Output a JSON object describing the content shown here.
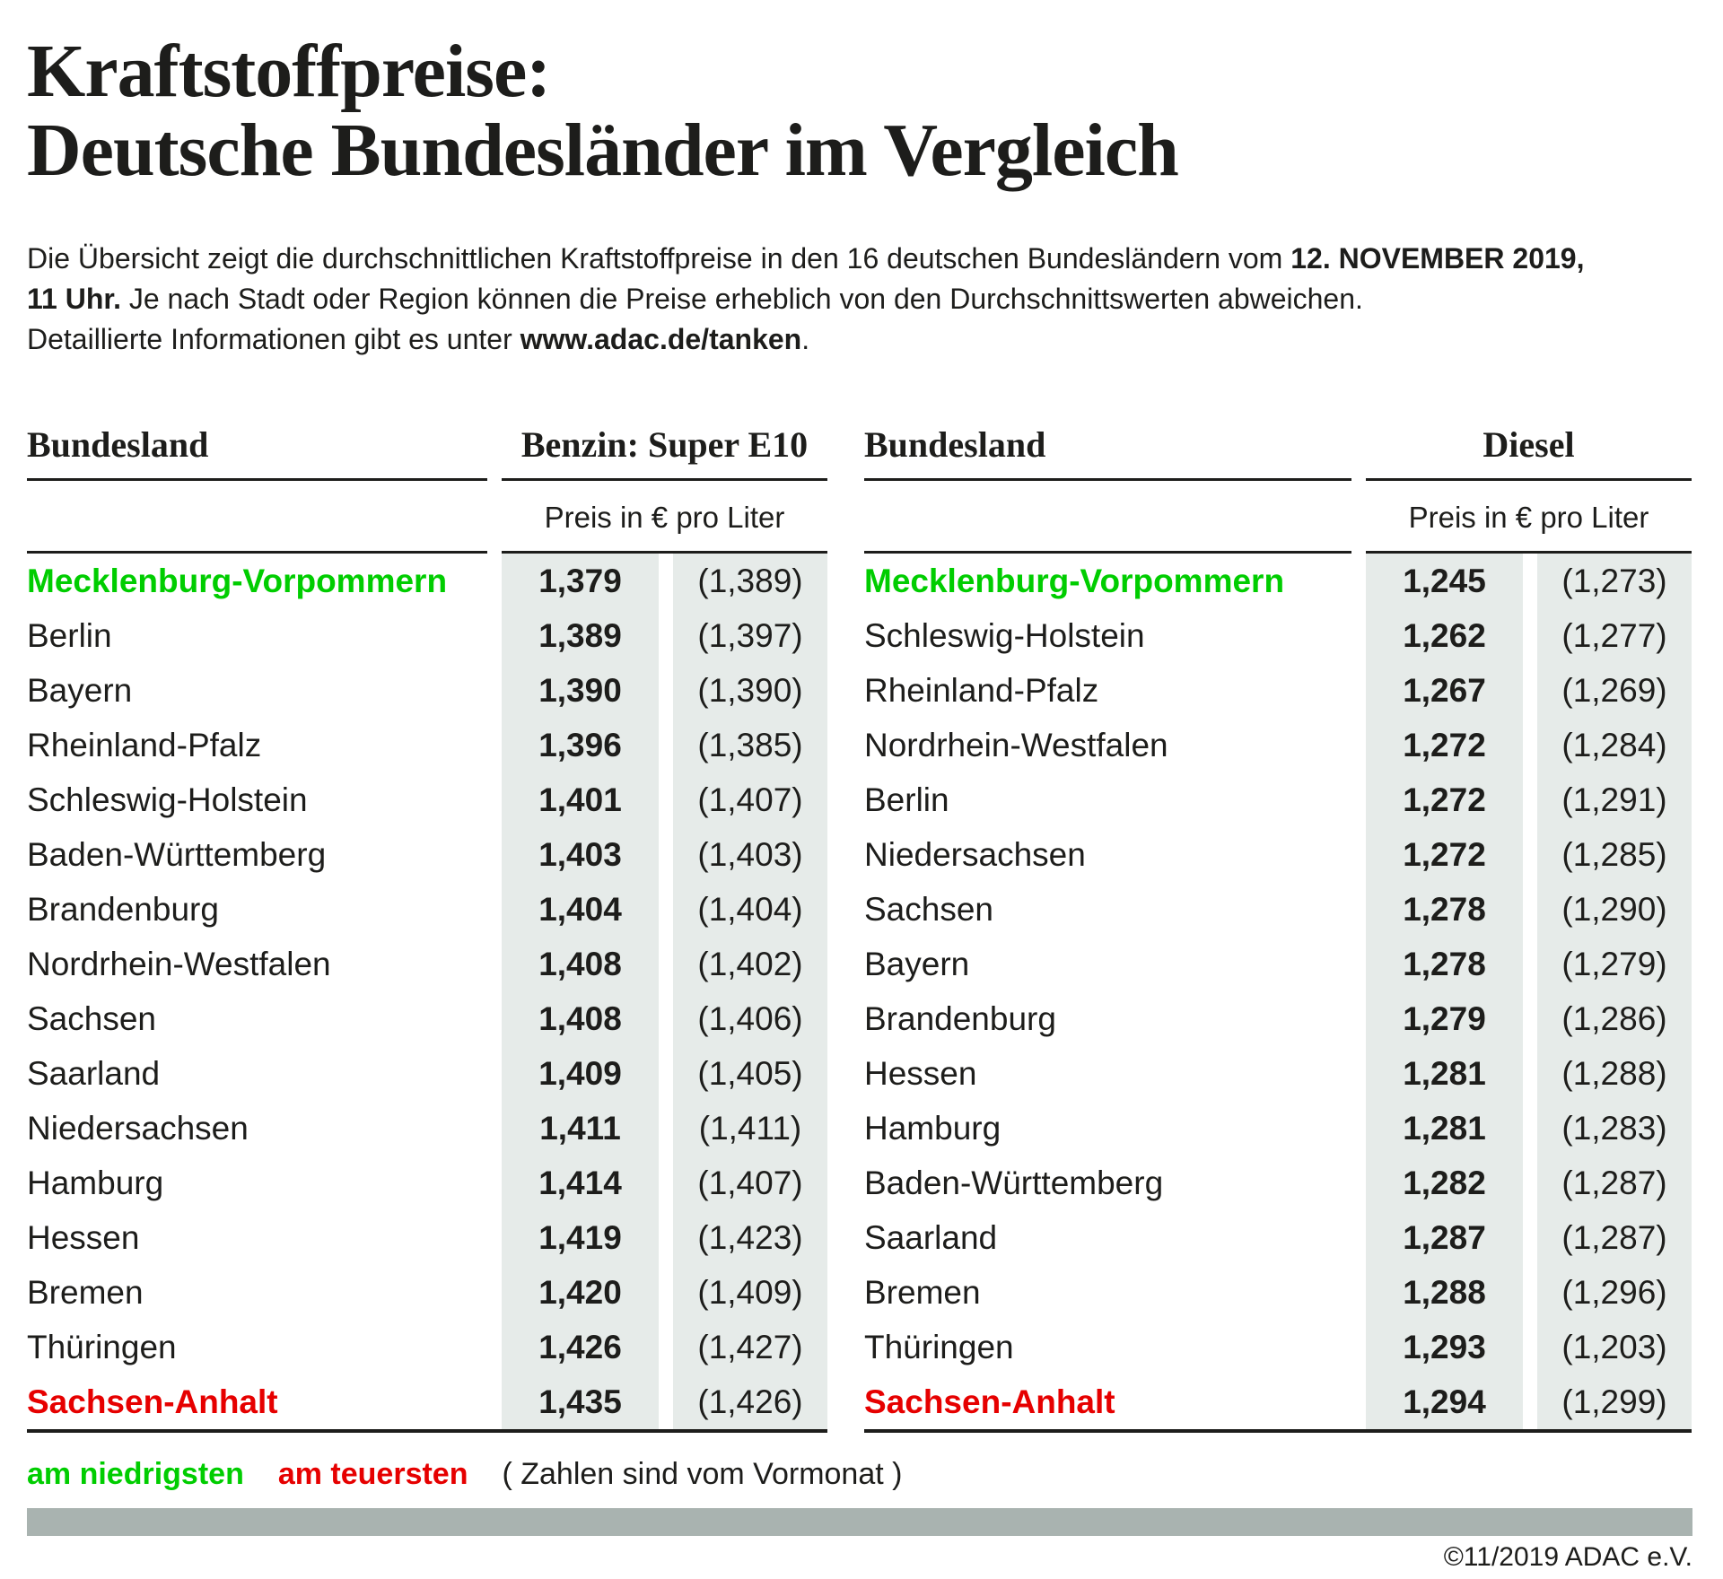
{
  "title": {
    "line1": "Kraftstoffpreise:",
    "line2": "Deutsche Bundesländer im Vergleich"
  },
  "intro": {
    "seg1": "Die Übersicht zeigt die durchschnittlichen Kraftstoffpreise in den 16 deutschen Bundesländern vom ",
    "seg2": "12. NOVEMBER 2019,",
    "seg3": "11 Uhr.",
    "seg4": " Je nach Stadt oder Region können die Preise erheblich von den Durchschnittswerten abweichen.",
    "seg5": "Detaillierte Informationen gibt es unter ",
    "seg6": "www.adac.de/tanken",
    "seg7": "."
  },
  "benzin": {
    "bundesland_header": "Bundesland",
    "fuel_header": "Benzin: Super E10",
    "unit_header": "Preis in € pro Liter",
    "rows": [
      {
        "state": "Mecklenburg-Vorpommern",
        "price": "1,379",
        "prev": "(1,389)",
        "highlight": "lowest"
      },
      {
        "state": "Berlin",
        "price": "1,389",
        "prev": "(1,397)"
      },
      {
        "state": "Bayern",
        "price": "1,390",
        "prev": "(1,390)"
      },
      {
        "state": "Rheinland-Pfalz",
        "price": "1,396",
        "prev": "(1,385)"
      },
      {
        "state": "Schleswig-Holstein",
        "price": "1,401",
        "prev": "(1,407)"
      },
      {
        "state": "Baden-Württemberg",
        "price": "1,403",
        "prev": "(1,403)"
      },
      {
        "state": "Brandenburg",
        "price": "1,404",
        "prev": "(1,404)"
      },
      {
        "state": "Nordrhein-Westfalen",
        "price": "1,408",
        "prev": "(1,402)"
      },
      {
        "state": "Sachsen",
        "price": "1,408",
        "prev": "(1,406)"
      },
      {
        "state": "Saarland",
        "price": "1,409",
        "prev": "(1,405)"
      },
      {
        "state": "Niedersachsen",
        "price": "1,411",
        "prev": "(1,411)"
      },
      {
        "state": "Hamburg",
        "price": "1,414",
        "prev": "(1,407)"
      },
      {
        "state": "Hessen",
        "price": "1,419",
        "prev": "(1,423)"
      },
      {
        "state": "Bremen",
        "price": "1,420",
        "prev": "(1,409)"
      },
      {
        "state": "Thüringen",
        "price": "1,426",
        "prev": "(1,427)"
      },
      {
        "state": "Sachsen-Anhalt",
        "price": "1,435",
        "prev": "(1,426)",
        "highlight": "highest"
      }
    ]
  },
  "diesel": {
    "bundesland_header": "Bundesland",
    "fuel_header": "Diesel",
    "unit_header": "Preis in € pro Liter",
    "rows": [
      {
        "state": "Mecklenburg-Vorpommern",
        "price": "1,245",
        "prev": "(1,273)",
        "highlight": "lowest"
      },
      {
        "state": "Schleswig-Holstein",
        "price": "1,262",
        "prev": "(1,277)"
      },
      {
        "state": "Rheinland-Pfalz",
        "price": "1,267",
        "prev": "(1,269)"
      },
      {
        "state": "Nordrhein-Westfalen",
        "price": "1,272",
        "prev": "(1,284)"
      },
      {
        "state": "Berlin",
        "price": "1,272",
        "prev": "(1,291)"
      },
      {
        "state": "Niedersachsen",
        "price": "1,272",
        "prev": "(1,285)"
      },
      {
        "state": "Sachsen",
        "price": "1,278",
        "prev": "(1,290)"
      },
      {
        "state": "Bayern",
        "price": "1,278",
        "prev": "(1,279)"
      },
      {
        "state": "Brandenburg",
        "price": "1,279",
        "prev": "(1,286)"
      },
      {
        "state": "Hessen",
        "price": "1,281",
        "prev": "(1,288)"
      },
      {
        "state": "Hamburg",
        "price": "1,281",
        "prev": "(1,283)"
      },
      {
        "state": "Baden-Württemberg",
        "price": "1,282",
        "prev": "(1,287)"
      },
      {
        "state": "Saarland",
        "price": "1,287",
        "prev": "(1,287)"
      },
      {
        "state": "Bremen",
        "price": "1,288",
        "prev": "(1,296)"
      },
      {
        "state": "Thüringen",
        "price": "1,293",
        "prev": "(1,203)"
      },
      {
        "state": "Sachsen-Anhalt",
        "price": "1,294",
        "prev": "(1,299)",
        "highlight": "highest"
      }
    ]
  },
  "legend": {
    "lowest_label": "am niedrigsten",
    "highest_label": "am teuersten",
    "note": "( Zahlen sind vom Vormonat )"
  },
  "footer": {
    "copyright": "©11/2019 ADAC e.V."
  },
  "colors": {
    "lowest_green": "#00cd00",
    "highest_red": "#e60000",
    "column_bg": "#e6ebe9",
    "bottom_bar": "#a9b3b0",
    "ink": "#1d1d1b"
  },
  "chart_data": [
    {
      "type": "table",
      "title": "Benzin: Super E10",
      "unit": "Preis in € pro Liter",
      "columns": [
        "Bundesland",
        "Preis",
        "Vormonat"
      ],
      "rows": [
        [
          "Mecklenburg-Vorpommern",
          1.379,
          1.389
        ],
        [
          "Berlin",
          1.389,
          1.397
        ],
        [
          "Bayern",
          1.39,
          1.39
        ],
        [
          "Rheinland-Pfalz",
          1.396,
          1.385
        ],
        [
          "Schleswig-Holstein",
          1.401,
          1.407
        ],
        [
          "Baden-Württemberg",
          1.403,
          1.403
        ],
        [
          "Brandenburg",
          1.404,
          1.404
        ],
        [
          "Nordrhein-Westfalen",
          1.408,
          1.402
        ],
        [
          "Sachsen",
          1.408,
          1.406
        ],
        [
          "Saarland",
          1.409,
          1.405
        ],
        [
          "Niedersachsen",
          1.411,
          1.411
        ],
        [
          "Hamburg",
          1.414,
          1.407
        ],
        [
          "Hessen",
          1.419,
          1.423
        ],
        [
          "Bremen",
          1.42,
          1.409
        ],
        [
          "Thüringen",
          1.426,
          1.427
        ],
        [
          "Sachsen-Anhalt",
          1.435,
          1.426
        ]
      ],
      "annotations": {
        "lowest": "Mecklenburg-Vorpommern",
        "highest": "Sachsen-Anhalt"
      }
    },
    {
      "type": "table",
      "title": "Diesel",
      "unit": "Preis in € pro Liter",
      "columns": [
        "Bundesland",
        "Preis",
        "Vormonat"
      ],
      "rows": [
        [
          "Mecklenburg-Vorpommern",
          1.245,
          1.273
        ],
        [
          "Schleswig-Holstein",
          1.262,
          1.277
        ],
        [
          "Rheinland-Pfalz",
          1.267,
          1.269
        ],
        [
          "Nordrhein-Westfalen",
          1.272,
          1.284
        ],
        [
          "Berlin",
          1.272,
          1.291
        ],
        [
          "Niedersachsen",
          1.272,
          1.285
        ],
        [
          "Sachsen",
          1.278,
          1.29
        ],
        [
          "Bayern",
          1.278,
          1.279
        ],
        [
          "Brandenburg",
          1.279,
          1.286
        ],
        [
          "Hessen",
          1.281,
          1.288
        ],
        [
          "Hamburg",
          1.281,
          1.283
        ],
        [
          "Baden-Württemberg",
          1.282,
          1.287
        ],
        [
          "Saarland",
          1.287,
          1.287
        ],
        [
          "Bremen",
          1.288,
          1.296
        ],
        [
          "Thüringen",
          1.293,
          1.203
        ],
        [
          "Sachsen-Anhalt",
          1.294,
          1.299
        ]
      ],
      "annotations": {
        "lowest": "Mecklenburg-Vorpommern",
        "highest": "Sachsen-Anhalt"
      }
    }
  ]
}
